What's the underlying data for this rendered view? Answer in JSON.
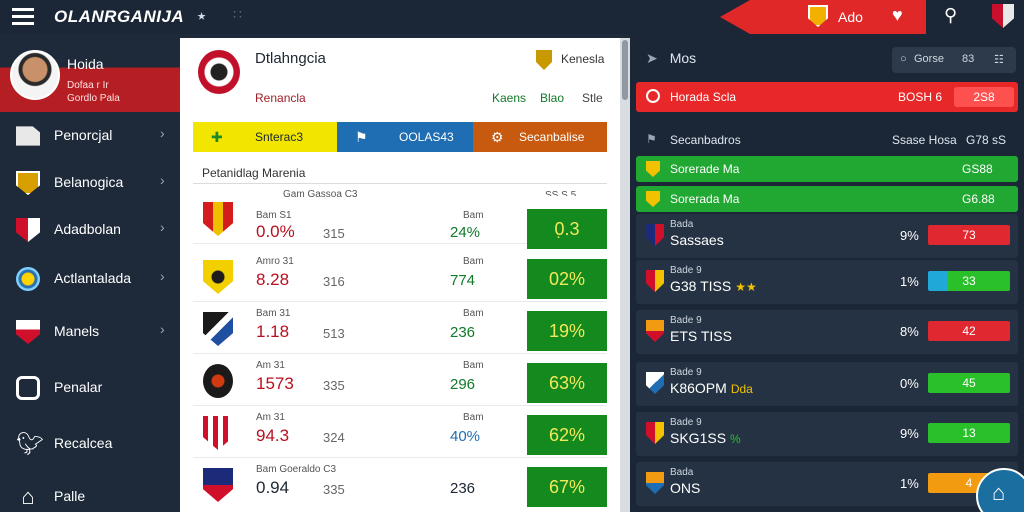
{
  "app": {
    "brand": "OLANRGANIJA",
    "top_label": "Ado"
  },
  "profile": {
    "name": "Hoida",
    "line1": "Dofaa r Ir",
    "line2": "Gordlo Pala"
  },
  "sidebar": {
    "items": [
      {
        "label": "Penorcjal",
        "icon": "document-icon"
      },
      {
        "label": "Belanogica",
        "icon": "gold-shield-icon"
      },
      {
        "label": "Adadbolan",
        "icon": "red-shield-icon"
      },
      {
        "label": "Actlantalada",
        "icon": "round-crest-icon"
      },
      {
        "label": "Manels",
        "icon": "red-white-shield-icon"
      },
      {
        "label": "Penalar",
        "icon": "square-icon"
      },
      {
        "label": "Recalcea",
        "icon": "bird-icon"
      },
      {
        "label": "Palle",
        "icon": "home-icon"
      }
    ]
  },
  "center": {
    "title": "Dtlahngcia",
    "subtitle": "Renancla",
    "crest2_label": "Kenesla",
    "tabs": [
      "Kaens",
      "Blao",
      "Stle"
    ],
    "buttons": [
      {
        "label": "Snterac3",
        "color": "#f2e600",
        "text_color": "#1c2733",
        "icon": "+"
      },
      {
        "label": "OOLAS43",
        "color": "#1f6db2",
        "text_color": "#ffffff",
        "icon": "⚑"
      },
      {
        "label": "Secanbalise",
        "color": "#c85a10",
        "text_color": "#ffffff",
        "icon": "⚙"
      }
    ],
    "section_label": "Petanidlag Marenia",
    "col_header": "SS S 5",
    "rows": [
      {
        "label": "Bam S1",
        "value": "0.0%",
        "mid": "315",
        "plabel": "Bam",
        "pvalue": "24%",
        "pct": "0̣.3",
        "crest": "yellow-red"
      },
      {
        "label": "Amro 31",
        "value": "8.28",
        "mid": "316",
        "plabel": "Bam",
        "pvalue": "774",
        "pct": "02%",
        "crest": "yellow-black"
      },
      {
        "label": "Bam 31",
        "value": "1.18",
        "mid": "513",
        "plabel": "Bam",
        "pvalue": "236",
        "pct": "19%",
        "crest": "blue-white"
      },
      {
        "label": "Am 31",
        "value": "1573",
        "mid": "335",
        "plabel": "Bam",
        "pvalue": "296",
        "pct": "63%",
        "crest": "black-red"
      },
      {
        "label": "Am 31",
        "value": "94.3",
        "mid": "324",
        "plabel": "Bam",
        "pvalue": "40%",
        "pct": "62%",
        "crest": "red-white"
      },
      {
        "label": "Bam Goeraldo C3",
        "value": "0.94",
        "mid": "335",
        "plabel": "",
        "pvalue": "236",
        "pct": "67%",
        "crest": "navy-red"
      }
    ],
    "row_header_first": "Gam Gassoa C3"
  },
  "right": {
    "title": "Mos",
    "btn1": "Gorse",
    "btn2": "83",
    "red_label": "Horada Scla",
    "red_value": "BOSH 6",
    "red_box": "2S8",
    "sec_label": "Secanbadros",
    "sec_v1": "Ssase Hosa",
    "sec_v2": "G78 sS",
    "green_rows": [
      {
        "label": "Sorerade Ma",
        "value": "GS88"
      },
      {
        "label": "Sorerada Ma",
        "value": "G6.88"
      }
    ],
    "rows": [
      {
        "top": "Bada",
        "name": "Sassaes",
        "extra": "",
        "pct": "9%",
        "value": "73",
        "color": "#e02830",
        "crest": "navy-red"
      },
      {
        "top": "Bade 9",
        "name": "G38 TISS",
        "extra": "★★",
        "pct": "1%",
        "value": "33",
        "color": "#2ac02a",
        "crest": "red-gold"
      },
      {
        "top": "Bade 9",
        "name": "ETS TISS",
        "extra": "",
        "pct": "8%",
        "value": "42",
        "color": "#e02830",
        "crest": "orange-red"
      },
      {
        "top": "Bade 9",
        "name": "K86OPM",
        "extra": "Dda",
        "pct": "0%",
        "value": "45",
        "color": "#2ac02a",
        "crest": "blue-white"
      },
      {
        "top": "Bade 9",
        "name": "SKG1SS",
        "extra": "%",
        "pct": "9%",
        "value": "13",
        "color": "#2ac02a",
        "crest": "red-gold2"
      },
      {
        "top": "Bada",
        "name": "ONS",
        "extra": "",
        "pct": "1%",
        "value": "4",
        "color": "#f29a10",
        "crest": "orange-blue"
      }
    ]
  },
  "colors": {
    "accent_red": "#e02828",
    "accent_green": "#21a832",
    "bg_dark": "#1b2636",
    "pct_green": "#148a1e"
  }
}
